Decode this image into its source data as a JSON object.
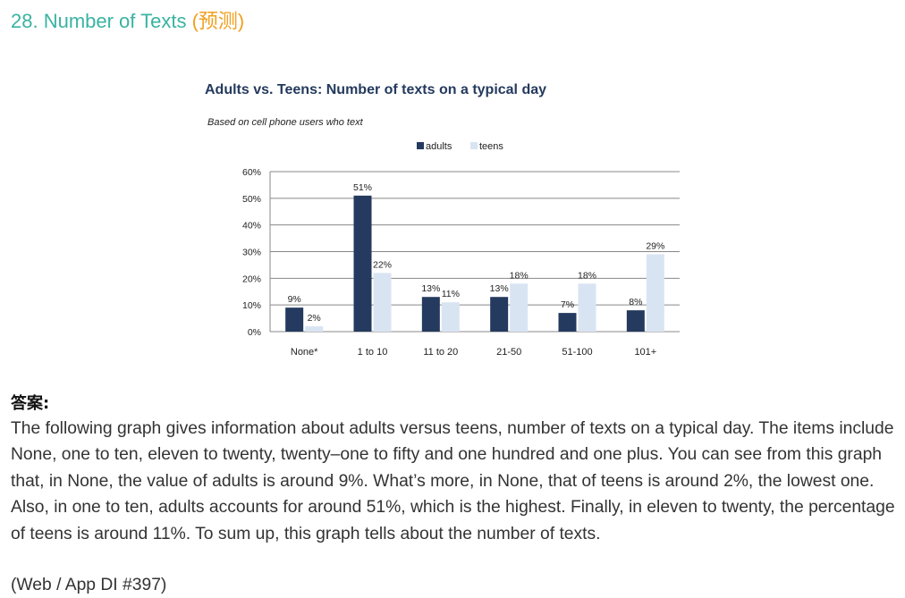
{
  "header": {
    "title": "28. Number of Texts",
    "tag": "(预测)"
  },
  "colors": {
    "title": "#3ab3a2",
    "tag": "#f0a020",
    "adults": "#243a5e",
    "teens": "#d9e4f3"
  },
  "chart_data": {
    "type": "bar",
    "title": "Adults vs. Teens: Number of texts on a typical day",
    "subtitle": "Based on cell phone users who text",
    "categories": [
      "None*",
      "1 to 10",
      "11 to 20",
      "21-50",
      "51-100",
      "101+"
    ],
    "series": [
      {
        "name": "adults",
        "values": [
          9,
          51,
          13,
          13,
          7,
          8
        ],
        "labels": [
          "9%",
          "51%",
          "13%",
          "13%",
          "7%",
          "8%"
        ]
      },
      {
        "name": "teens",
        "values": [
          2,
          22,
          11,
          18,
          18,
          29
        ],
        "labels": [
          "2%",
          "22%",
          "11%",
          "18%",
          "18%",
          "29%"
        ]
      }
    ],
    "y_ticks": [
      "0%",
      "10%",
      "20%",
      "30%",
      "40%",
      "50%",
      "60%"
    ],
    "ylim": [
      0,
      60
    ],
    "grid": true,
    "legend": "top"
  },
  "answer": {
    "heading": "答案:",
    "text": "The following graph gives information about adults versus teens, number of texts on a typical day. The items include None, one to ten, eleven to twenty, twenty–one to fifty and one hundred and one plus. You can see from this graph that, in None, the value of adults is around 9%. What’s more, in None, that of teens is around 2%, the lowest one. Also, in one to ten, adults accounts for around 51%, which is the highest. Finally, in eleven to twenty, the percentage of teens is around 11%. To sum up, this graph tells about the number of texts.",
    "source": "(Web / App DI #397)"
  }
}
